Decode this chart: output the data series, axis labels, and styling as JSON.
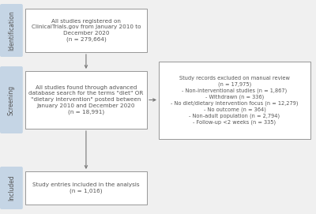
{
  "bg_color": "#f0f0f0",
  "box_color": "#ffffff",
  "box_edge_color": "#888888",
  "arrow_color": "#777777",
  "sidebar_color": "#c5d5e5",
  "sidebar_text_color": "#555555",
  "box1_text": "All studies registered on\nClinicalTrials.gov from January 2010 to\nDecember 2020\n(n = 279,664)",
  "box2_text": "All studies found through advanced\ndatabase search for the terms \"diet\" OR\n\"dietary intervention\" posted between\nJanuary 2010 and December 2020\n(n = 18,991)",
  "box3_text": "Study entries included in the analysis\n(n = 1,016)",
  "box_exclude_text": "Study records excluded on manual review\n(n = 17,975)\n- Non-interventional studies (n = 1,867)\n- Withdrawn (n = 336)\n- No diet/dietary intervention focus (n = 12,279)\n- No outcome (n = 364)\n- Non-adult population (n = 2,794)\n- Follow-up <2 weeks (n = 335)",
  "sidebar_labels": [
    "Identification",
    "Screening",
    "Included"
  ],
  "main_fontsize": 5.2,
  "exclude_fontsize": 4.8,
  "sidebar_fontsize": 5.5
}
